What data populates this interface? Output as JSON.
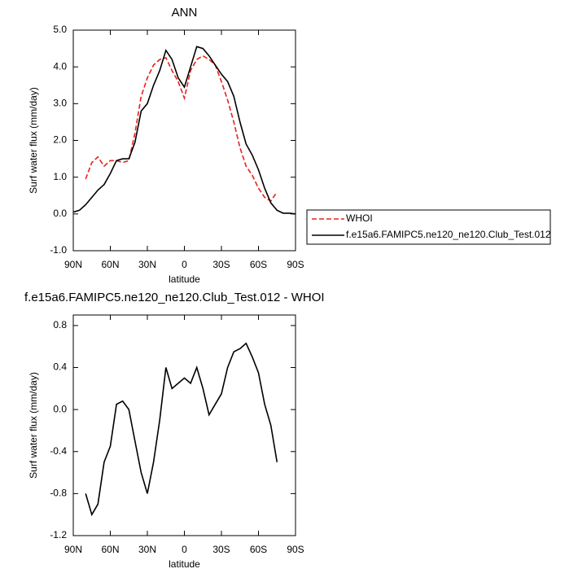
{
  "chart_data": [
    {
      "type": "line",
      "title": "ANN",
      "x_label": "latitude",
      "y_label": "Surf water flux (mm/day)",
      "x": [
        90,
        85,
        80,
        75,
        70,
        65,
        60,
        55,
        50,
        45,
        40,
        35,
        30,
        25,
        20,
        15,
        10,
        5,
        0,
        -5,
        -10,
        -15,
        -20,
        -25,
        -30,
        -35,
        -40,
        -45,
        -50,
        -55,
        -60,
        -65,
        -70,
        -75,
        -80,
        -85,
        -90
      ],
      "series": [
        {
          "name": "WHOI",
          "color": "#e8201c",
          "dashed": true,
          "values": [
            null,
            null,
            0.95,
            1.4,
            1.55,
            1.3,
            1.45,
            1.45,
            1.4,
            1.45,
            2.2,
            3.2,
            3.7,
            4.05,
            4.2,
            4.25,
            3.9,
            3.6,
            3.15,
            3.9,
            4.2,
            4.3,
            4.2,
            4.05,
            3.6,
            3.1,
            2.5,
            1.8,
            1.3,
            1.05,
            0.7,
            0.45,
            0.35,
            0.6,
            null,
            null,
            null
          ]
        },
        {
          "name": "f.e15a6.FAMIPC5.ne120_ne120.Club_Test.012",
          "color": "#000000",
          "dashed": false,
          "values": [
            0.05,
            0.1,
            0.25,
            0.45,
            0.65,
            0.8,
            1.1,
            1.45,
            1.5,
            1.5,
            1.95,
            2.8,
            3.0,
            3.5,
            3.9,
            4.45,
            4.2,
            3.7,
            3.45,
            4.0,
            4.55,
            4.5,
            4.3,
            4.05,
            3.8,
            3.6,
            3.2,
            2.5,
            1.9,
            1.6,
            1.2,
            0.7,
            0.3,
            0.1,
            0.02,
            0.02,
            0.0
          ]
        }
      ],
      "xlim": [
        90,
        -90
      ],
      "xticks": [
        {
          "value": 90,
          "label": "90N"
        },
        {
          "value": 60,
          "label": "60N"
        },
        {
          "value": 30,
          "label": "30N"
        },
        0,
        {
          "value": -30,
          "label": "30S"
        },
        {
          "value": -60,
          "label": "60S"
        },
        {
          "value": -90,
          "label": "90S"
        }
      ],
      "ylim": [
        -1,
        5
      ],
      "yticks": [
        {
          "value": -1,
          "label": "-1.0"
        },
        {
          "value": 0,
          "label": "0.0"
        },
        {
          "value": 1,
          "label": "1.0"
        },
        {
          "value": 2,
          "label": "2.0"
        },
        {
          "value": 3,
          "label": "3.0"
        },
        {
          "value": 4,
          "label": "4.0"
        },
        {
          "value": 5,
          "label": "5.0"
        }
      ],
      "legend": "outside-right"
    },
    {
      "type": "line",
      "title": "f.e15a6.FAMIPC5.ne120_ne120.Club_Test.012 - WHOI",
      "x_label": "latitude",
      "y_label": "Surf water flux (mm/day)",
      "x": [
        80,
        75,
        70,
        65,
        60,
        55,
        50,
        45,
        40,
        35,
        30,
        25,
        20,
        15,
        10,
        5,
        0,
        -5,
        -10,
        -15,
        -20,
        -25,
        -30,
        -35,
        -40,
        -45,
        -50,
        -55,
        -60,
        -65,
        -70,
        -75
      ],
      "values": [
        -0.8,
        -1.0,
        -0.9,
        -0.5,
        -0.35,
        0.05,
        0.08,
        0.0,
        -0.3,
        -0.6,
        -0.8,
        -0.5,
        -0.1,
        0.4,
        0.2,
        0.25,
        0.3,
        0.25,
        0.4,
        0.2,
        -0.05,
        0.05,
        0.15,
        0.4,
        0.55,
        0.58,
        0.63,
        0.5,
        0.35,
        0.05,
        -0.15,
        -0.5
      ],
      "color": "#000000",
      "xlim": [
        90,
        -90
      ],
      "xticks": [
        {
          "value": 90,
          "label": "90N"
        },
        {
          "value": 60,
          "label": "60N"
        },
        {
          "value": 30,
          "label": "30N"
        },
        0,
        {
          "value": -30,
          "label": "30S"
        },
        {
          "value": -60,
          "label": "60S"
        },
        {
          "value": -90,
          "label": "90S"
        }
      ],
      "ylim": [
        -1.2,
        0.9
      ],
      "yticks": [
        {
          "value": -1.2,
          "label": "-1.2"
        },
        {
          "value": -0.8,
          "label": "-0.8"
        },
        {
          "value": -0.4,
          "label": "-0.4"
        },
        {
          "value": 0,
          "label": "0.0"
        },
        {
          "value": 0.4,
          "label": "0.4"
        },
        {
          "value": 0.8,
          "label": "0.8"
        }
      ]
    }
  ]
}
